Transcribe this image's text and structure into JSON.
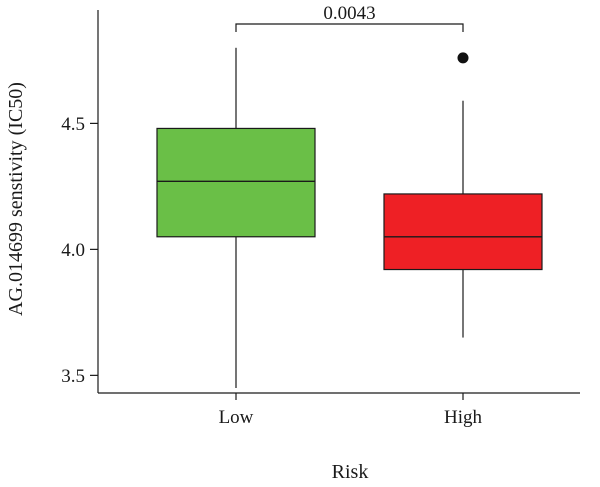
{
  "chart_data": {
    "type": "boxplot",
    "xlabel": "Risk",
    "ylabel": "AG.014699 senstivity (IC50)",
    "ylim": [
      3.43,
      4.95
    ],
    "yticks": [
      3.5,
      4.0,
      4.5
    ],
    "ytick_labels": [
      "3.5",
      "4.0",
      "4.5"
    ],
    "categories": [
      "Low",
      "High"
    ],
    "boxes": [
      {
        "category": "Low",
        "whisker_low": 3.45,
        "q1": 4.05,
        "median": 4.27,
        "q3": 4.48,
        "whisker_high": 4.8,
        "outliers": [],
        "color": "#6abf47"
      },
      {
        "category": "High",
        "whisker_low": 3.65,
        "q1": 3.92,
        "median": 4.05,
        "q3": 4.22,
        "whisker_high": 4.59,
        "outliers": [
          4.76
        ],
        "color": "#ee2025"
      }
    ],
    "annotation": {
      "text": "0.0043",
      "between": [
        "Low",
        "High"
      ]
    }
  }
}
